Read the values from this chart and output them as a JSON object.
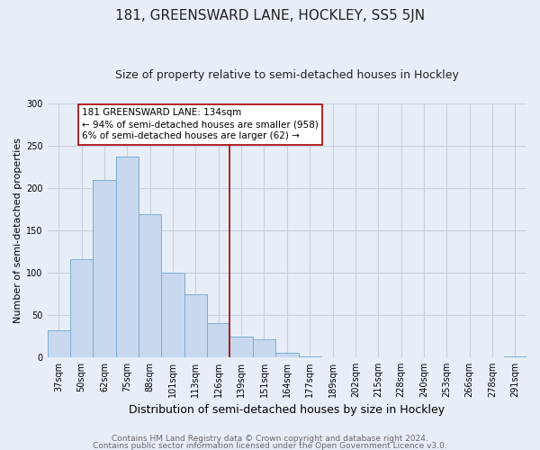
{
  "title": "181, GREENSWARD LANE, HOCKLEY, SS5 5JN",
  "subtitle": "Size of property relative to semi-detached houses in Hockley",
  "xlabel": "Distribution of semi-detached houses by size in Hockley",
  "ylabel": "Number of semi-detached properties",
  "footnote1": "Contains HM Land Registry data © Crown copyright and database right 2024.",
  "footnote2": "Contains public sector information licensed under the Open Government Licence v3.0.",
  "bar_labels": [
    "37sqm",
    "50sqm",
    "62sqm",
    "75sqm",
    "88sqm",
    "101sqm",
    "113sqm",
    "126sqm",
    "139sqm",
    "151sqm",
    "164sqm",
    "177sqm",
    "189sqm",
    "202sqm",
    "215sqm",
    "228sqm",
    "240sqm",
    "253sqm",
    "266sqm",
    "278sqm",
    "291sqm"
  ],
  "bar_values": [
    32,
    116,
    210,
    237,
    169,
    100,
    74,
    40,
    24,
    21,
    5,
    1,
    0,
    0,
    0,
    0,
    0,
    0,
    0,
    0,
    1
  ],
  "bar_color": "#c8d8ee",
  "bar_edge_color": "#7aafd4",
  "vline_x_index": 8,
  "vline_color": "#aa0000",
  "annotation_text": "181 GREENSWARD LANE: 134sqm\n← 94% of semi-detached houses are smaller (958)\n6% of semi-detached houses are larger (62) →",
  "annotation_box_facecolor": "#ffffff",
  "annotation_box_edgecolor": "#aa0000",
  "ylim": [
    0,
    300
  ],
  "yticks": [
    0,
    50,
    100,
    150,
    200,
    250,
    300
  ],
  "bg_color": "#e8eef8",
  "grid_color": "#c8d0e0",
  "title_fontsize": 11,
  "subtitle_fontsize": 9,
  "tick_fontsize": 7,
  "ylabel_fontsize": 8,
  "xlabel_fontsize": 9,
  "annotation_fontsize": 7.5,
  "footnote_fontsize": 6.5
}
